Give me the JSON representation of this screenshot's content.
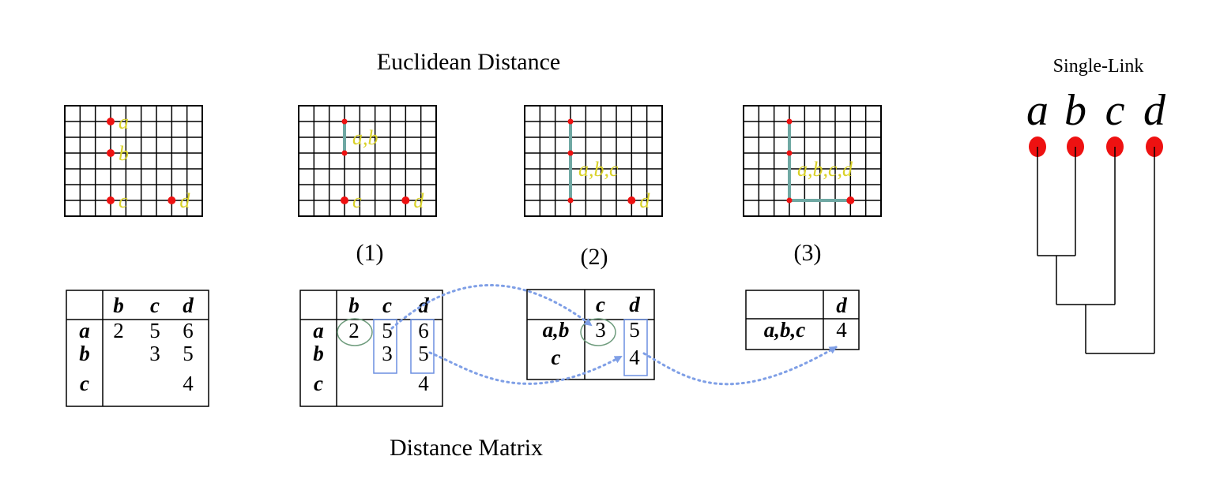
{
  "titles": {
    "top": "Euclidean Distance",
    "bottom": "Distance Matrix",
    "dendrogram": "Single-Link"
  },
  "step_labels": [
    "(1)",
    "(2)",
    "(3)"
  ],
  "grids": [
    {
      "name": "grid-initial",
      "points": [
        {
          "label": "a",
          "col": 3,
          "row": 1
        },
        {
          "label": "b",
          "col": 3,
          "row": 3
        },
        {
          "label": "c",
          "col": 3,
          "row": 6
        },
        {
          "label": "d",
          "col": 7,
          "row": 6
        }
      ],
      "cluster_labels": [
        {
          "text": "a",
          "col": 3,
          "row": 1
        },
        {
          "text": "b",
          "col": 3,
          "row": 3
        },
        {
          "text": "c",
          "col": 3,
          "row": 6
        },
        {
          "text": "d",
          "col": 7,
          "row": 6
        }
      ],
      "links": []
    },
    {
      "name": "grid-step-1",
      "points": [
        {
          "label": "a",
          "col": 3,
          "row": 1
        },
        {
          "label": "b",
          "col": 3,
          "row": 3
        },
        {
          "label": "c",
          "col": 3,
          "row": 6
        },
        {
          "label": "d",
          "col": 7,
          "row": 6
        }
      ],
      "cluster_labels": [
        {
          "text": "a,b",
          "col": 3,
          "row": 2
        },
        {
          "text": "c",
          "col": 3,
          "row": 6
        },
        {
          "text": "d",
          "col": 7,
          "row": 6
        }
      ],
      "links": [
        [
          3,
          1,
          3,
          3
        ]
      ]
    },
    {
      "name": "grid-step-2",
      "points": [
        {
          "label": "a",
          "col": 3,
          "row": 1
        },
        {
          "label": "b",
          "col": 3,
          "row": 3
        },
        {
          "label": "c",
          "col": 3,
          "row": 6
        },
        {
          "label": "d",
          "col": 7,
          "row": 6
        }
      ],
      "cluster_labels": [
        {
          "text": "a,b,c",
          "col": 3,
          "row": 4
        },
        {
          "text": "d",
          "col": 7,
          "row": 6
        }
      ],
      "links": [
        [
          3,
          1,
          3,
          6
        ]
      ]
    },
    {
      "name": "grid-step-3",
      "points": [
        {
          "label": "a",
          "col": 3,
          "row": 1
        },
        {
          "label": "b",
          "col": 3,
          "row": 3
        },
        {
          "label": "c",
          "col": 3,
          "row": 6
        },
        {
          "label": "d",
          "col": 7,
          "row": 6
        }
      ],
      "cluster_labels": [
        {
          "text": "a,b,c,d",
          "col": 3,
          "row": 4
        }
      ],
      "links": [
        [
          3,
          1,
          3,
          6
        ],
        [
          3,
          6,
          7,
          6
        ]
      ]
    }
  ],
  "matrices": [
    {
      "name": "matrix-initial",
      "col_headers": [
        "b",
        "c",
        "d"
      ],
      "row_headers": [
        "a",
        "b",
        "c"
      ],
      "cells": [
        [
          "2",
          "5",
          "6"
        ],
        [
          "",
          "3",
          "5"
        ],
        [
          "",
          "",
          "4"
        ]
      ]
    },
    {
      "name": "matrix-step-1",
      "col_headers": [
        "b",
        "c",
        "d"
      ],
      "row_headers": [
        "a",
        "b",
        "c"
      ],
      "cells": [
        [
          "2",
          "5",
          "6"
        ],
        [
          "",
          "3",
          "5"
        ],
        [
          "",
          "",
          "4"
        ]
      ]
    },
    {
      "name": "matrix-step-2",
      "col_headers": [
        "c",
        "d"
      ],
      "row_headers": [
        "a,b",
        "c"
      ],
      "cells": [
        [
          "3",
          "5"
        ],
        [
          "",
          "4"
        ]
      ]
    },
    {
      "name": "matrix-step-3",
      "col_headers": [
        "d"
      ],
      "row_headers": [
        "a,b,c"
      ],
      "cells": [
        [
          "4"
        ]
      ]
    }
  ],
  "dendrogram": {
    "leaves": [
      "a",
      "b",
      "c",
      "d"
    ],
    "merges": [
      {
        "left": "a",
        "right": "b",
        "height": 2
      },
      {
        "left": "a,b",
        "right": "c",
        "height": 3
      },
      {
        "left": "a,b,c",
        "right": "d",
        "height": 4
      }
    ]
  },
  "colors": {
    "point": "#ee1111",
    "label": "#d9d128",
    "link": "#6fa8a3",
    "circle": "#6f9c7d",
    "box": "#6c8fe0",
    "arrow": "#7f9fe6"
  }
}
